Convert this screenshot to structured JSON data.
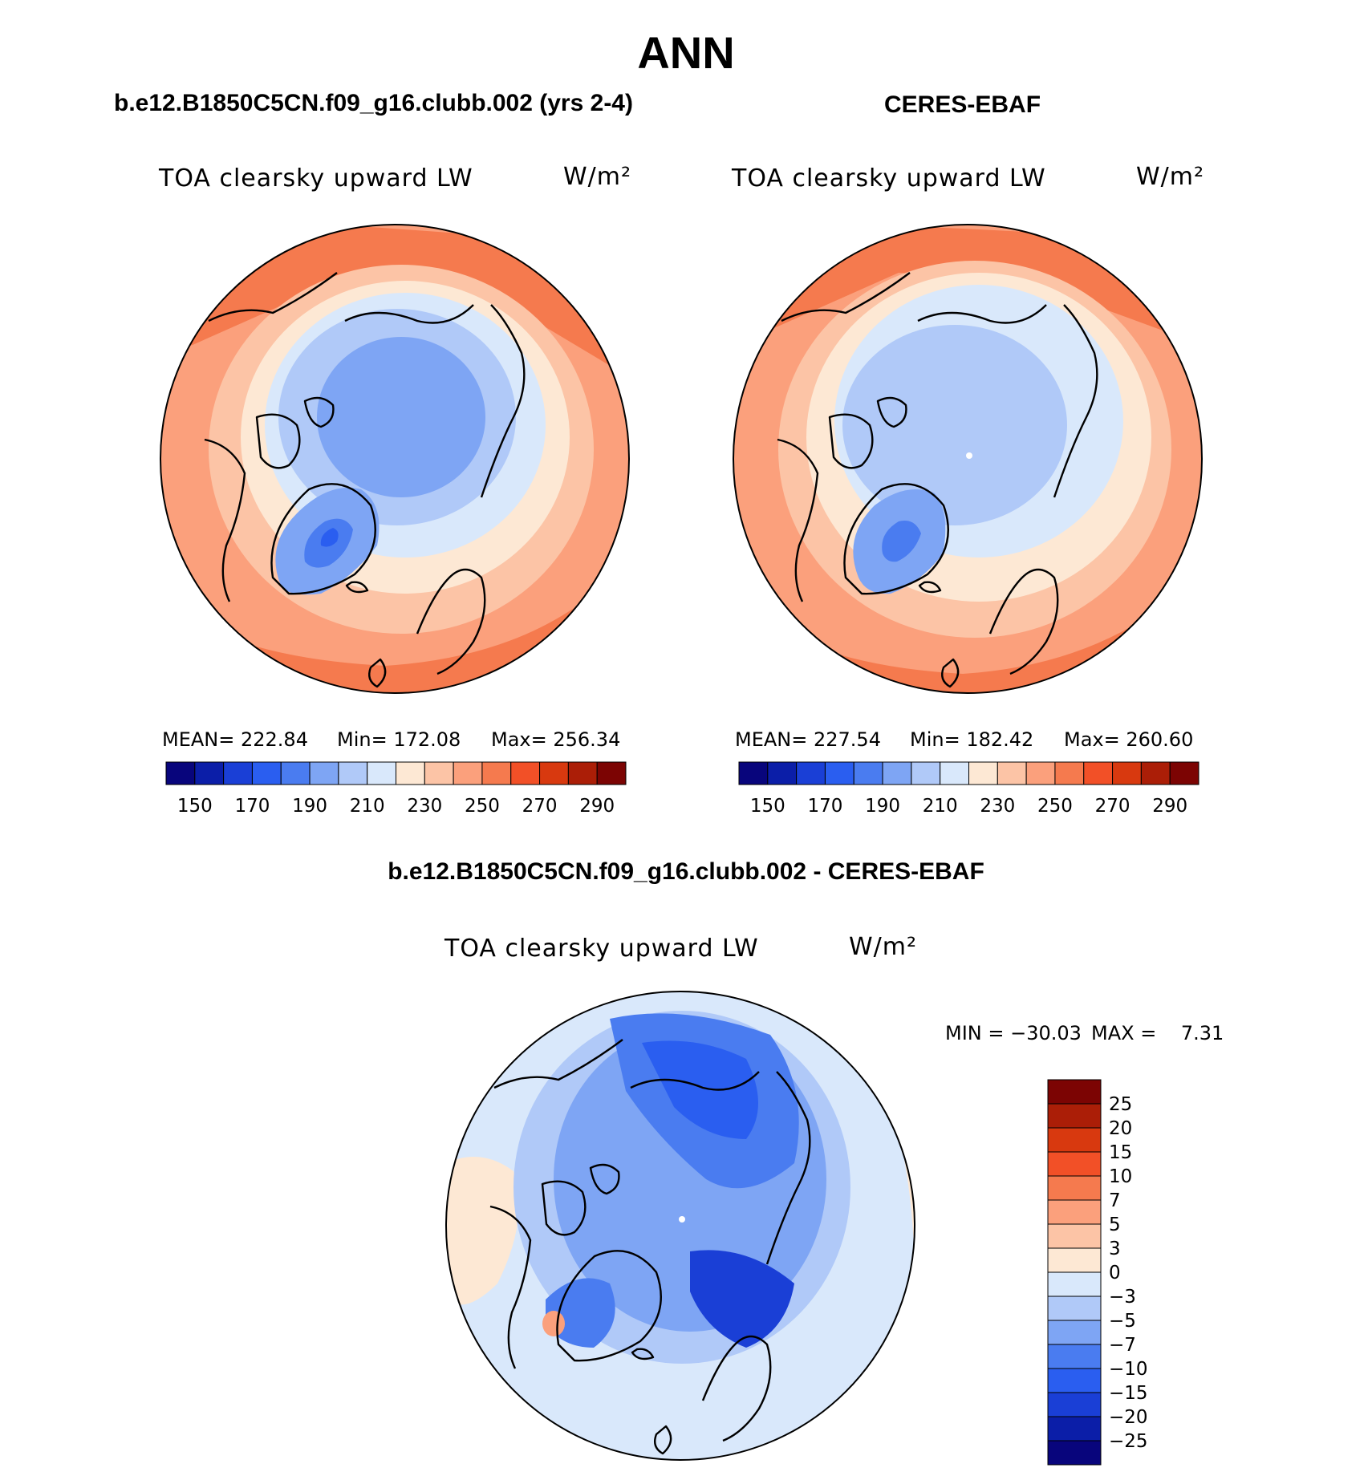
{
  "page": {
    "title": "ANN",
    "diff_title": "b.e12.B1850C5CN.f09_g16.clubb.002 - CERES-EBAF"
  },
  "panels": [
    {
      "case": "b.e12.B1850C5CN.f09_g16.clubb.002 (yrs 2-4)",
      "variable": "TOA clearsky upward LW",
      "units": "W/m²",
      "stats": {
        "mean": "MEAN= 222.84",
        "min": "Min= 172.08",
        "max": "Max= 256.34"
      }
    },
    {
      "case": "CERES-EBAF",
      "variable": "TOA clearsky upward LW",
      "units": "W/m²",
      "stats": {
        "mean": "MEAN= 227.54",
        "min": "Min= 182.42",
        "max": "Max= 260.60"
      }
    },
    {
      "case": "b.e12.B1850C5CN.f09_g16.clubb.002 - CERES-EBAF",
      "variable": "TOA clearsky upward LW",
      "units": "W/m²",
      "stats": {
        "min": "MIN = −30.03",
        "max": "MAX =    7.31"
      }
    }
  ],
  "colors": {
    "field_scale": [
      "#08057c",
      "#0b1ea8",
      "#1a3fd6",
      "#2a5ef0",
      "#4a7cf0",
      "#7ea5f4",
      "#b0c9f8",
      "#d9e8fb",
      "#fde8d4",
      "#fcc4a6",
      "#fba07c",
      "#f57a4e",
      "#f25027",
      "#d8390f",
      "#ab1e07",
      "#7c0403"
    ],
    "diff_scale": [
      "#08057c",
      "#0b1ea8",
      "#1a3fd6",
      "#2a5ef0",
      "#4a7cf0",
      "#7ea5f4",
      "#b0c9f8",
      "#d9e8fb",
      "#fde8d4",
      "#fcc4a6",
      "#fba07c",
      "#f57a4e",
      "#f25027",
      "#d8390f",
      "#ab1e07",
      "#7c0403"
    ]
  },
  "chart_data": [
    {
      "type": "heatmap",
      "projection": "north polar stereographic",
      "title": "b.e12.B1850C5CN.f09_g16.clubb.002 (yrs 2-4)",
      "variable": "TOA clearsky upward LW",
      "units": "W/m2",
      "mean": 222.84,
      "min": 172.08,
      "max": 256.34,
      "colorbar_levels": [
        150,
        160,
        170,
        180,
        190,
        200,
        210,
        220,
        230,
        240,
        250,
        260,
        270,
        280,
        290
      ],
      "colorbar_tick_labels": [
        "150",
        "170",
        "190",
        "210",
        "230",
        "250",
        "270",
        "290"
      ]
    },
    {
      "type": "heatmap",
      "projection": "north polar stereographic",
      "title": "CERES-EBAF",
      "variable": "TOA clearsky upward LW",
      "units": "W/m2",
      "mean": 227.54,
      "min": 182.42,
      "max": 260.6,
      "colorbar_levels": [
        150,
        160,
        170,
        180,
        190,
        200,
        210,
        220,
        230,
        240,
        250,
        260,
        270,
        280,
        290
      ],
      "colorbar_tick_labels": [
        "150",
        "170",
        "190",
        "210",
        "230",
        "250",
        "270",
        "290"
      ]
    },
    {
      "type": "heatmap",
      "projection": "north polar stereographic",
      "title": "b.e12.B1850C5CN.f09_g16.clubb.002 - CERES-EBAF",
      "variable": "TOA clearsky upward LW",
      "units": "W/m2",
      "min": -30.03,
      "max": 7.31,
      "colorbar_levels": [
        -25,
        -20,
        -15,
        -10,
        -7,
        -5,
        -3,
        0,
        3,
        5,
        7,
        10,
        15,
        20,
        25
      ],
      "colorbar_tick_labels": [
        "25",
        "20",
        "15",
        "10",
        "7",
        "5",
        "3",
        "0",
        "−3",
        "−5",
        "−7",
        "−10",
        "−15",
        "−20",
        "−25"
      ]
    }
  ]
}
